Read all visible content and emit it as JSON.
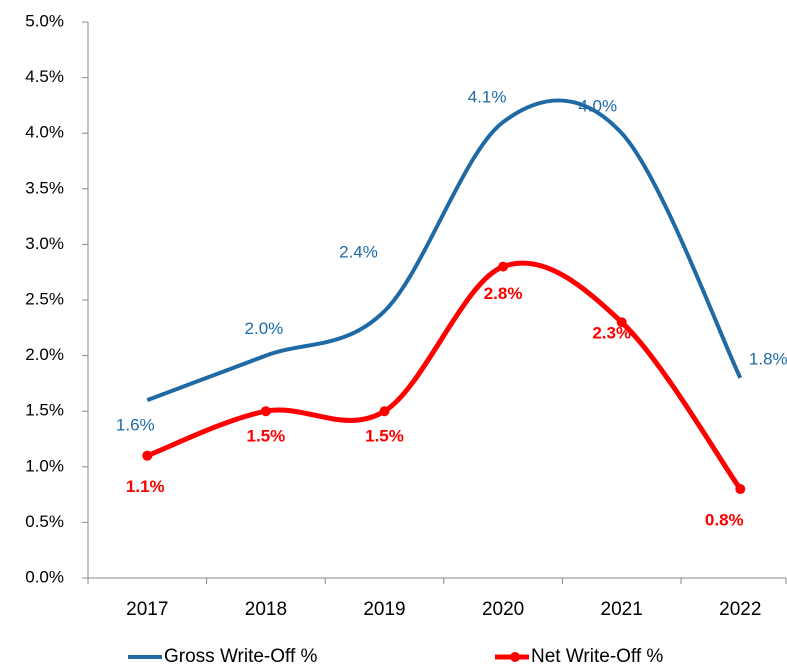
{
  "chart_data": {
    "type": "line",
    "categories": [
      "2017",
      "2018",
      "2019",
      "2020",
      "2021",
      "2022"
    ],
    "series": [
      {
        "name": "Gross Write-Off %",
        "color": "#1f6aa5",
        "values": [
          1.6,
          2.0,
          2.4,
          4.1,
          4.0,
          1.8
        ],
        "value_labels": [
          "1.6%",
          "2.0%",
          "2.4%",
          "4.1%",
          "4.0%",
          "1.8%"
        ]
      },
      {
        "name": "Net Write-Off %",
        "color": "#ff0000",
        "values": [
          1.1,
          1.5,
          1.5,
          2.8,
          2.3,
          0.8
        ],
        "value_labels": [
          "1.1%",
          "1.5%",
          "1.5%",
          "2.8%",
          "2.3%",
          "0.8%"
        ]
      }
    ],
    "ylim": [
      0,
      5
    ],
    "yticks": [
      {
        "value": 0,
        "label": "0.0%"
      },
      {
        "value": 0.5,
        "label": "0.5%"
      },
      {
        "value": 1,
        "label": "1.0%"
      },
      {
        "value": 1.5,
        "label": "1.5%"
      },
      {
        "value": 2,
        "label": "2.0%"
      },
      {
        "value": 2.5,
        "label": "2.5%"
      },
      {
        "value": 3,
        "label": "3.0%"
      },
      {
        "value": 3.5,
        "label": "3.5%"
      },
      {
        "value": 4,
        "label": "4.0%"
      },
      {
        "value": 4.5,
        "label": "4.5%"
      },
      {
        "value": 5,
        "label": "5.0%"
      }
    ],
    "grid": false,
    "legend": "bottom"
  }
}
